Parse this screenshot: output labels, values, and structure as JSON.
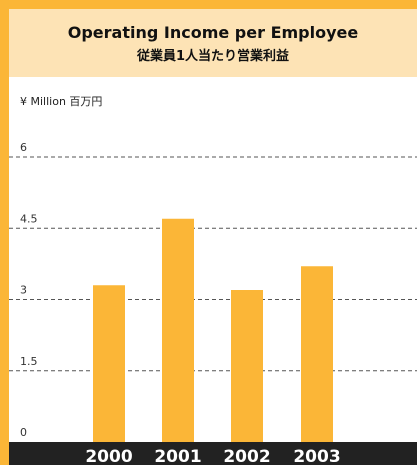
{
  "chart_data": {
    "type": "bar",
    "title": "Operating Income per Employee",
    "subtitle": "従業員1人当たり営業利益",
    "unit_label": "¥ Million  百万円",
    "categories": [
      "2000",
      "2001",
      "2002",
      "2003"
    ],
    "values": [
      3.3,
      4.7,
      3.2,
      3.7
    ],
    "yticks": [
      "0",
      "1.5",
      "3",
      "4.5",
      "6"
    ],
    "ytick_values": [
      0,
      1.5,
      3,
      4.5,
      6
    ],
    "ylim": [
      0,
      6
    ],
    "grid": true,
    "bar_color": "#fbb637",
    "axis_band_color": "#222222",
    "header_color": "#fde3b5"
  }
}
